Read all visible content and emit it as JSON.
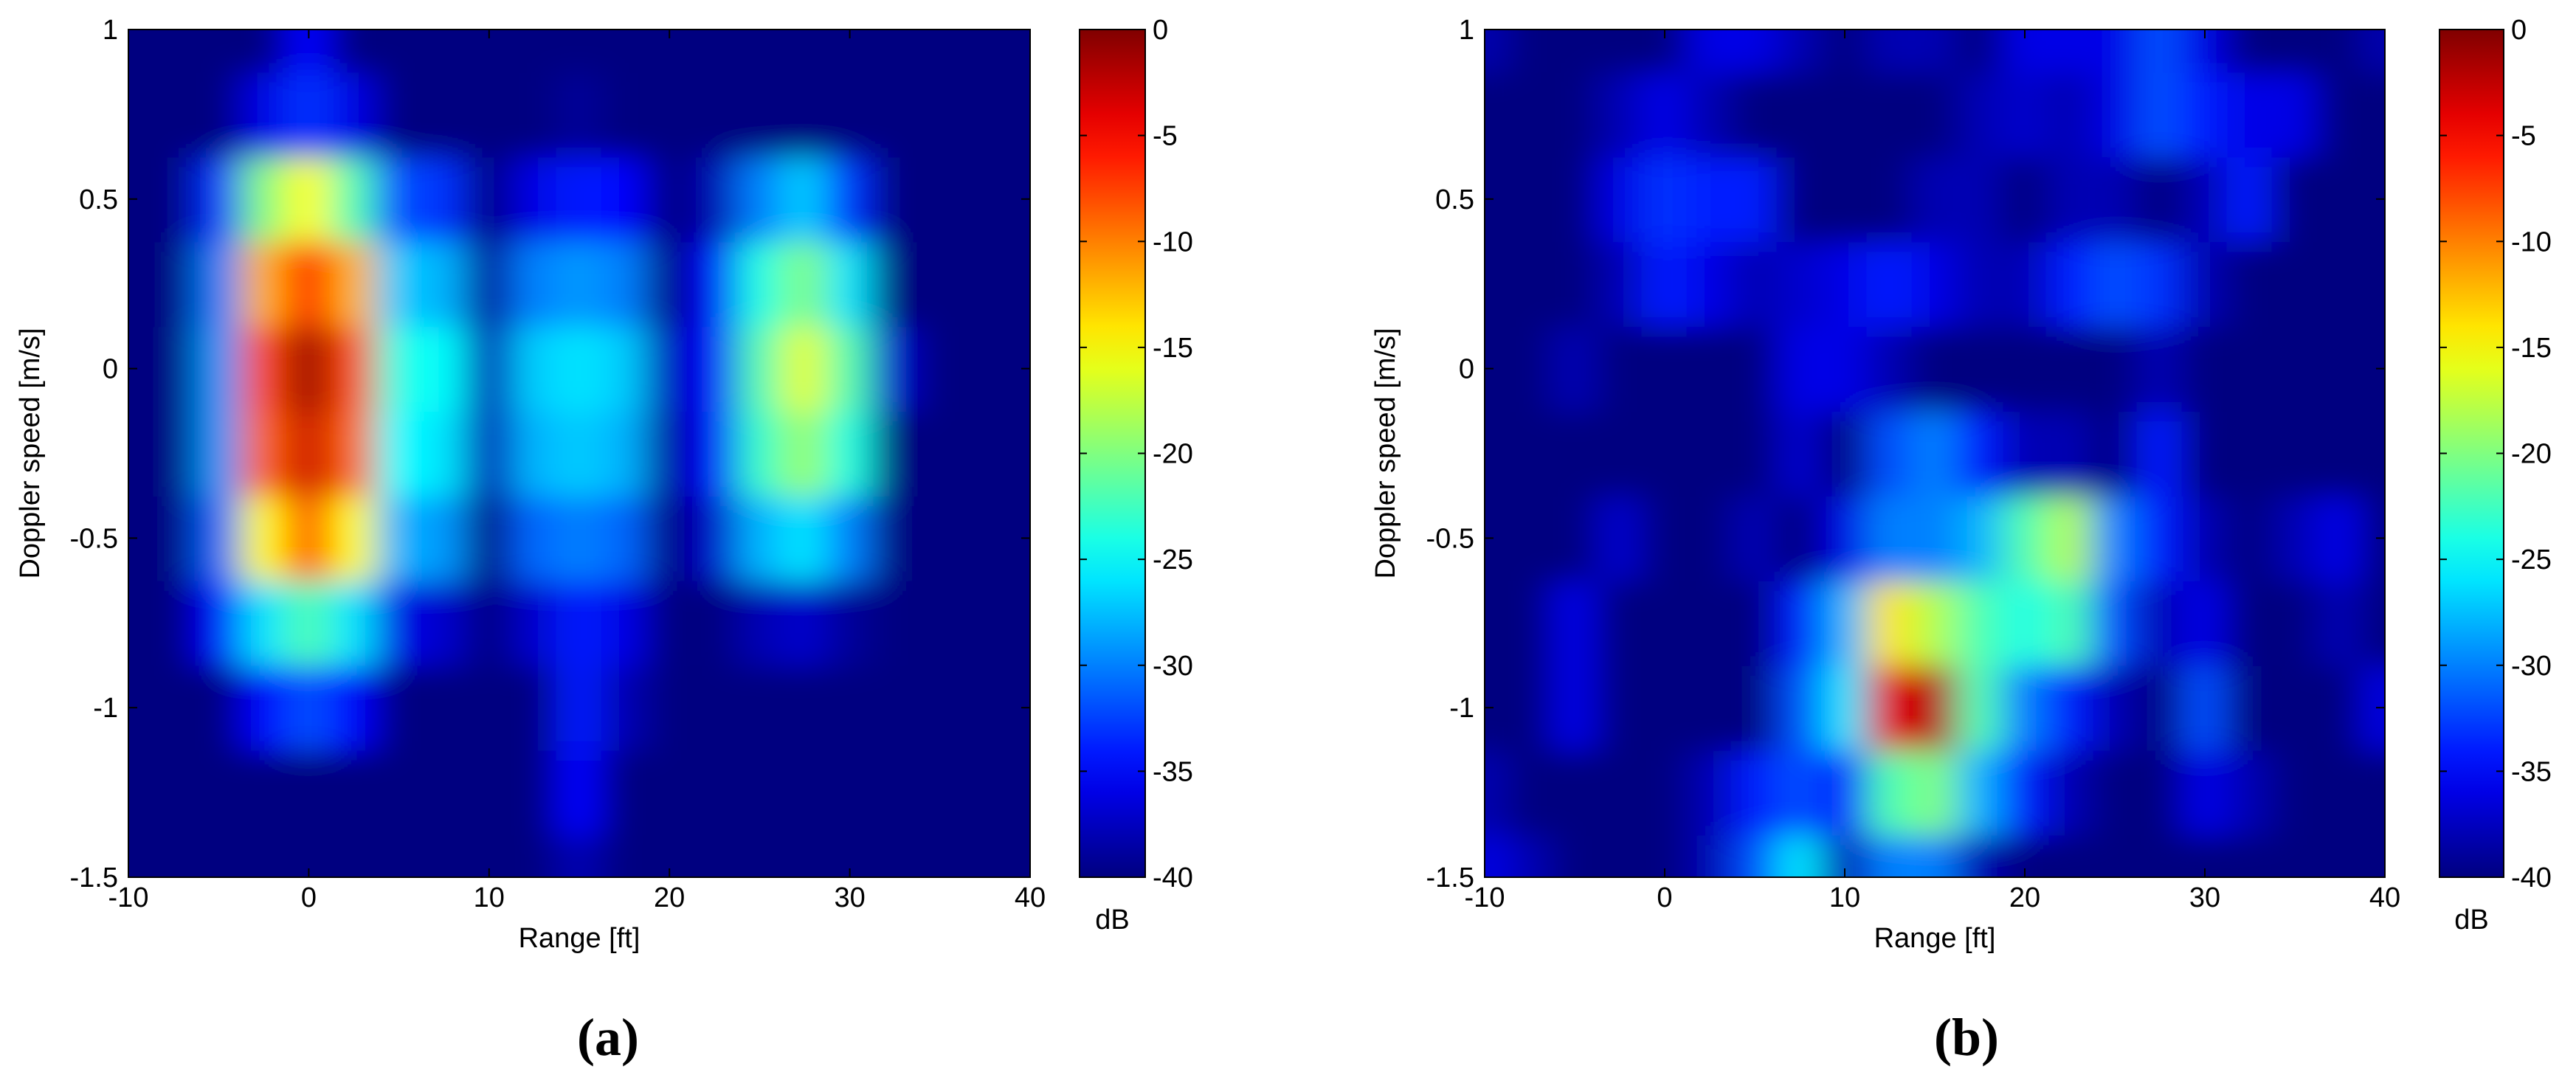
{
  "chart_data": [
    {
      "type": "heatmap",
      "caption": "(a)",
      "xlabel": "Range [ft]",
      "ylabel": "Doppler speed [m/s]",
      "xlim": [
        -10,
        40
      ],
      "xticks": [
        -10,
        0,
        10,
        20,
        30,
        40
      ],
      "ylim": [
        -1.5,
        1
      ],
      "yticks": [
        -1.5,
        -1,
        -0.5,
        0,
        0.5,
        1
      ],
      "colormap": "jet",
      "colorbar_label": "dB",
      "clim": [
        -40,
        0
      ],
      "cticks": [
        -40,
        -35,
        -30,
        -25,
        -20,
        -15,
        -10,
        -5,
        0
      ],
      "x": [
        -10,
        -7.5,
        -5,
        -2.5,
        0,
        2.5,
        5,
        7.5,
        10,
        12.5,
        15,
        17.5,
        20,
        22.5,
        25,
        27.5,
        30,
        32.5,
        35,
        37.5,
        40
      ],
      "y": [
        -1.5,
        -1.25,
        -1,
        -0.75,
        -0.5,
        -0.25,
        0,
        0.25,
        0.5,
        0.75,
        1
      ],
      "z": [
        [
          -40,
          -40,
          -40,
          -40,
          -40,
          -40,
          -40,
          -40,
          -40,
          -40,
          -38,
          -40,
          -40,
          -40,
          -40,
          -40,
          -40,
          -40,
          -40,
          -40,
          -40
        ],
        [
          -40,
          -40,
          -40,
          -40,
          -40,
          -40,
          -40,
          -40,
          -40,
          -40,
          -35,
          -40,
          -40,
          -40,
          -40,
          -40,
          -40,
          -40,
          -40,
          -40,
          -40
        ],
        [
          -40,
          -40,
          -40,
          -35,
          -32,
          -35,
          -40,
          -40,
          -40,
          -40,
          -34,
          -38,
          -40,
          -40,
          -40,
          -40,
          -40,
          -40,
          -40,
          -40,
          -40
        ],
        [
          -40,
          -40,
          -35,
          -26,
          -22,
          -26,
          -36,
          -37,
          -40,
          -37,
          -34,
          -36,
          -40,
          -40,
          -38,
          -37,
          -39,
          -40,
          -40,
          -40,
          -40
        ],
        [
          -40,
          -40,
          -31,
          -15,
          -8,
          -15,
          -28,
          -29,
          -40,
          -31,
          -30,
          -31,
          -40,
          -37,
          -28,
          -26,
          -30,
          -40,
          -40,
          -40,
          -40
        ],
        [
          -40,
          -40,
          -29,
          -9,
          -3,
          -9,
          -25,
          -26,
          -38,
          -28,
          -27,
          -28,
          -39,
          -35,
          -23,
          -19,
          -24,
          -40,
          -40,
          -40,
          -40
        ],
        [
          -40,
          -40,
          -29,
          -8,
          -1,
          -8,
          -24,
          -25,
          -38,
          -27,
          -26,
          -27,
          -38,
          -35,
          -22,
          -16,
          -22,
          -37,
          -40,
          -40,
          -40
        ],
        [
          -40,
          -40,
          -30,
          -12,
          -6,
          -12,
          -27,
          -28,
          -39,
          -30,
          -29,
          -30,
          -40,
          -35,
          -24,
          -20,
          -26,
          -40,
          -40,
          -40,
          -40
        ],
        [
          -40,
          -40,
          -33,
          -20,
          -15,
          -22,
          -32,
          -33,
          -40,
          -36,
          -34,
          -35,
          -40,
          -38,
          -30,
          -27,
          -33,
          -40,
          -40,
          -40,
          -40
        ],
        [
          -40,
          -40,
          -40,
          -36,
          -33,
          -36,
          -40,
          -40,
          -40,
          -40,
          -39,
          -40,
          -40,
          -40,
          -40,
          -40,
          -40,
          -40,
          -40,
          -40,
          -40
        ],
        [
          -40,
          -40,
          -40,
          -40,
          -35,
          -40,
          -40,
          -40,
          -40,
          -40,
          -40,
          -40,
          -40,
          -40,
          -40,
          -40,
          -40,
          -40,
          -40,
          -40,
          -40
        ]
      ]
    },
    {
      "type": "heatmap",
      "caption": "(b)",
      "xlabel": "Range [ft]",
      "ylabel": "Doppler speed [m/s]",
      "xlim": [
        -10,
        40
      ],
      "xticks": [
        -10,
        0,
        10,
        20,
        30,
        40
      ],
      "ylim": [
        -1.5,
        1
      ],
      "yticks": [
        -1.5,
        -1,
        -0.5,
        0,
        0.5,
        1
      ],
      "colormap": "jet",
      "colorbar_label": "dB",
      "clim": [
        -40,
        0
      ],
      "cticks": [
        -40,
        -35,
        -30,
        -25,
        -20,
        -15,
        -10,
        -5,
        0
      ],
      "x": [
        -10,
        -7.5,
        -5,
        -2.5,
        0,
        2.5,
        5,
        7.5,
        10,
        12.5,
        15,
        17.5,
        20,
        22.5,
        25,
        27.5,
        30,
        32.5,
        35,
        37.5,
        40
      ],
      "y": [
        -1.5,
        -1.25,
        -1,
        -0.75,
        -0.5,
        -0.25,
        0,
        0.25,
        0.5,
        0.75,
        1
      ],
      "z": [
        [
          -36,
          -38,
          -40,
          -40,
          -40,
          -38,
          -32,
          -26,
          -38,
          -30,
          -30,
          -38,
          -40,
          -40,
          -40,
          -40,
          -40,
          -40,
          -40,
          -40,
          -40
        ],
        [
          -38,
          -40,
          -40,
          -40,
          -40,
          -38,
          -34,
          -32,
          -34,
          -22,
          -20,
          -28,
          -34,
          -38,
          -40,
          -40,
          -36,
          -38,
          -40,
          -40,
          -40
        ],
        [
          -40,
          -40,
          -36,
          -40,
          -40,
          -40,
          -40,
          -32,
          -26,
          -4,
          -2,
          -22,
          -30,
          -34,
          -38,
          -40,
          -32,
          -40,
          -40,
          -40,
          -36
        ],
        [
          -40,
          -40,
          -36,
          -40,
          -40,
          -40,
          -40,
          -34,
          -28,
          -14,
          -18,
          -22,
          -24,
          -22,
          -32,
          -38,
          -36,
          -40,
          -40,
          -38,
          -40
        ],
        [
          -40,
          -40,
          -40,
          -37,
          -40,
          -40,
          -38,
          -40,
          -36,
          -30,
          -30,
          -28,
          -22,
          -18,
          -30,
          -34,
          -38,
          -40,
          -38,
          -36,
          -40
        ],
        [
          -40,
          -40,
          -40,
          -40,
          -40,
          -40,
          -40,
          -37,
          -40,
          -32,
          -30,
          -34,
          -38,
          -38,
          -40,
          -34,
          -40,
          -40,
          -40,
          -40,
          -40
        ],
        [
          -40,
          -40,
          -38,
          -40,
          -40,
          -40,
          -40,
          -36,
          -36,
          -38,
          -40,
          -40,
          -40,
          -40,
          -40,
          -38,
          -40,
          -40,
          -40,
          -40,
          -40
        ],
        [
          -40,
          -40,
          -40,
          -38,
          -34,
          -36,
          -38,
          -37,
          -36,
          -34,
          -36,
          -38,
          -38,
          -34,
          -32,
          -33,
          -38,
          -40,
          -40,
          -40,
          -40
        ],
        [
          -40,
          -40,
          -40,
          -36,
          -33,
          -34,
          -34,
          -40,
          -40,
          -40,
          -38,
          -38,
          -40,
          -38,
          -38,
          -40,
          -38,
          -34,
          -40,
          -40,
          -40
        ],
        [
          -40,
          -40,
          -40,
          -38,
          -36,
          -38,
          -40,
          -40,
          -40,
          -40,
          -40,
          -38,
          -37,
          -38,
          -36,
          -32,
          -34,
          -36,
          -36,
          -40,
          -40
        ],
        [
          -38,
          -40,
          -40,
          -40,
          -40,
          -36,
          -36,
          -38,
          -40,
          -38,
          -38,
          -40,
          -36,
          -36,
          -36,
          -32,
          -36,
          -40,
          -40,
          -40,
          -38
        ]
      ]
    }
  ]
}
